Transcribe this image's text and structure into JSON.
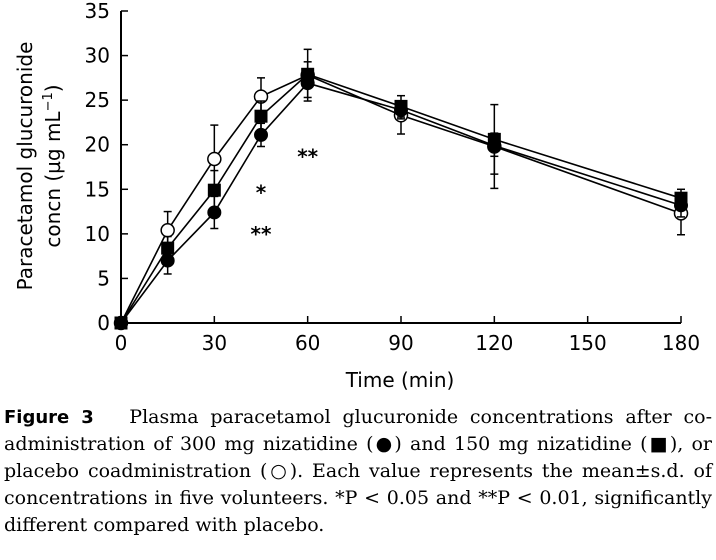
{
  "chart_data": {
    "type": "line",
    "xlabel": "Time (min)",
    "ylabel_line1": "Paracetamol glucuronide",
    "ylabel_line2_prefix": "concn (µg mL",
    "ylabel_line2_sup": "−1",
    "ylabel_line2_suffix": ")",
    "xlim": [
      0,
      180
    ],
    "ylim": [
      0,
      35
    ],
    "xticks": [
      0,
      30,
      60,
      90,
      120,
      150,
      180
    ],
    "yticks": [
      0,
      5,
      10,
      15,
      20,
      25,
      30,
      35
    ],
    "series": [
      {
        "marker": "circle-open",
        "x": [
          0,
          15,
          30,
          45,
          60,
          90,
          120,
          180
        ],
        "y": [
          0,
          10.4,
          18.4,
          25.4,
          27.8,
          23.3,
          19.8,
          12.3
        ],
        "err_up": [
          0,
          2.1,
          3.8,
          2.1,
          2.9,
          1.0,
          1.5,
          1.6
        ],
        "err_down": [
          0,
          2.1,
          3.8,
          2.1,
          2.9,
          2.1,
          4.7,
          2.4
        ]
      },
      {
        "marker": "square-filled",
        "x": [
          0,
          15,
          30,
          45,
          60,
          90,
          120,
          180
        ],
        "y": [
          0,
          8.4,
          14.9,
          23.2,
          27.9,
          24.3,
          20.6,
          14.0
        ],
        "err_up": [
          0,
          1.3,
          2.2,
          1.7,
          1.4,
          1.2,
          3.9,
          1.0
        ],
        "err_down": [
          0,
          1.3,
          2.2,
          1.7,
          1.4,
          1.2,
          3.9,
          1.0
        ]
      },
      {
        "marker": "circle-filled",
        "x": [
          0,
          15,
          30,
          45,
          60,
          90,
          120,
          180
        ],
        "y": [
          0,
          7.0,
          12.4,
          21.1,
          26.9,
          23.9,
          19.9,
          13.2
        ],
        "err_up": [
          0,
          1.5,
          1.8,
          1.3,
          1.6,
          1.0,
          1.2,
          1.3
        ],
        "err_down": [
          0,
          1.5,
          1.8,
          1.3,
          1.6,
          1.0,
          1.2,
          1.3
        ]
      }
    ],
    "annotations": [
      {
        "text": "**",
        "x": 60,
        "y": 19
      },
      {
        "text": "*",
        "x": 45,
        "y": 15
      },
      {
        "text": "**",
        "x": 45,
        "y": 10.3
      }
    ]
  },
  "caption": {
    "label": "Figure 3",
    "text": "Plasma paracetamol glucuronide concentrations after co-administration of 300 mg nizatidine (●) and 150 mg nizatidine (■), or placebo coadministration (○). Each value represents the mean±s.d. of concentrations in five volunteers. *P < 0.05 and **P < 0.01, significantly different compared with placebo."
  }
}
